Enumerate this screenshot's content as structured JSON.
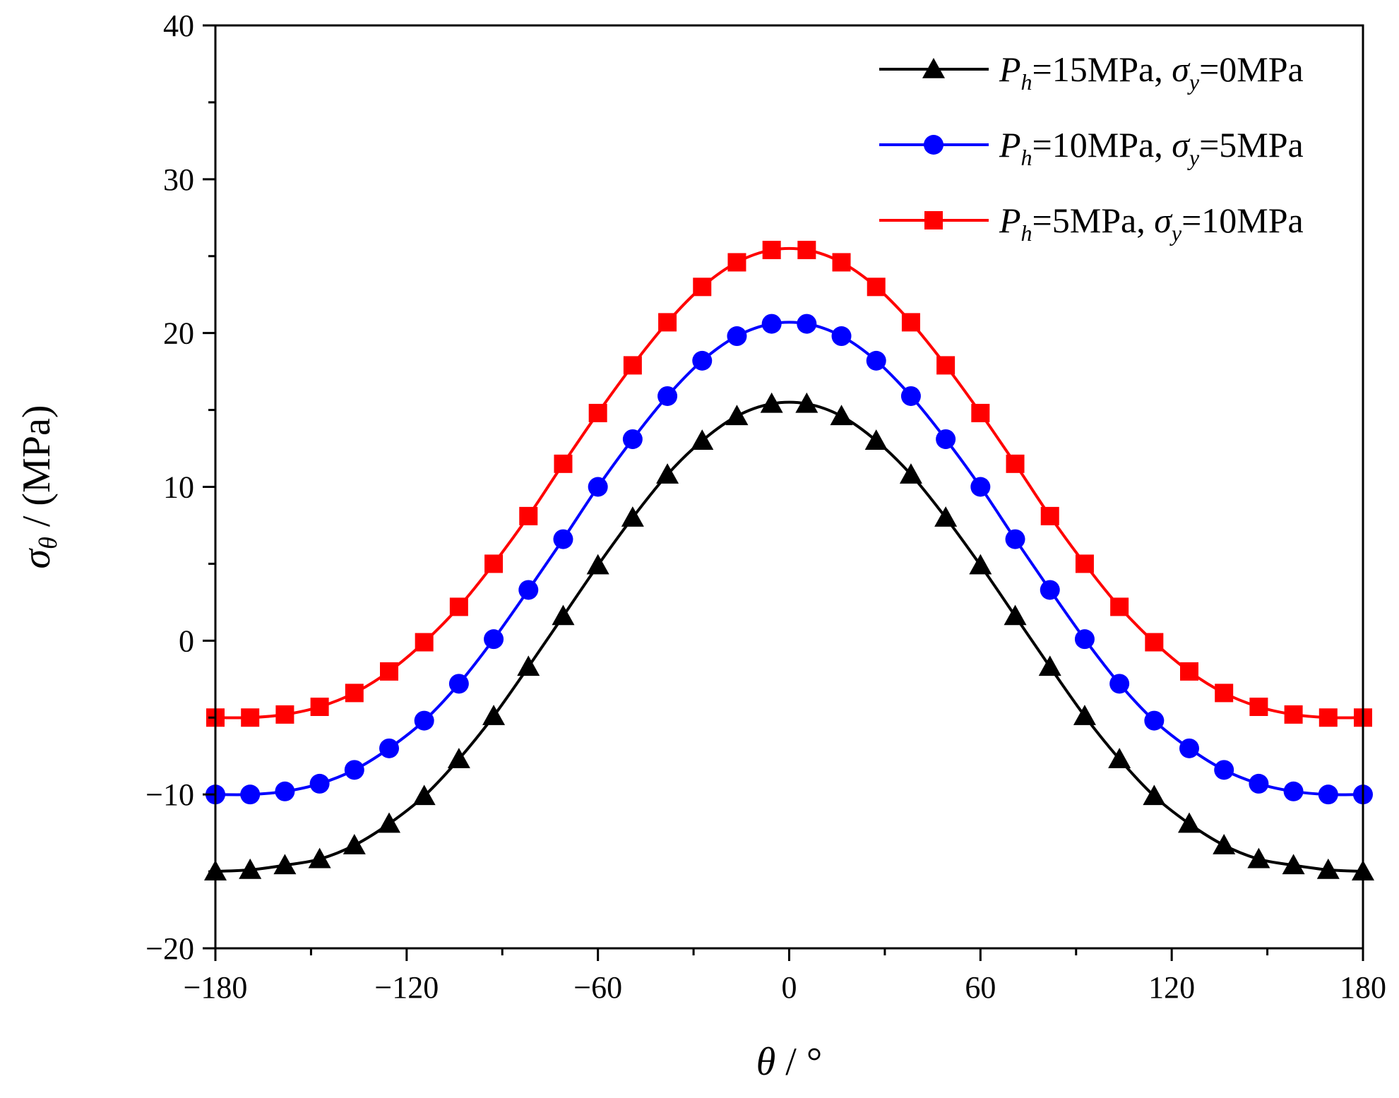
{
  "chart_data": {
    "type": "line",
    "title": "",
    "xlabel": {
      "symbol": "θ",
      "unit": "°",
      "separator": " / "
    },
    "ylabel": {
      "symbol": "σ",
      "subscript": "θ",
      "unit": "(MPa)",
      "separator": " / "
    },
    "xlim": [
      -180,
      180
    ],
    "ylim": [
      -20,
      40
    ],
    "xticks": [
      -180,
      -120,
      -60,
      0,
      60,
      120,
      180
    ],
    "xtick_labels": [
      "−180",
      "−120",
      "−60",
      "0",
      "60",
      "120",
      "180"
    ],
    "yticks": [
      -20,
      -10,
      0,
      10,
      20,
      30,
      40
    ],
    "ytick_labels": [
      "−20",
      "−10",
      "0",
      "10",
      "20",
      "30",
      "40"
    ],
    "grid": false,
    "legend_position": "top-right",
    "x": [
      -180,
      -169.1,
      -158.2,
      -147.3,
      -136.4,
      -125.5,
      -114.5,
      -103.6,
      -92.7,
      -81.8,
      -70.9,
      -60,
      -49.1,
      -38.2,
      -27.3,
      -16.4,
      -5.5,
      5.5,
      16.4,
      27.3,
      38.2,
      49.1,
      60,
      70.9,
      81.8,
      92.7,
      103.6,
      114.5,
      125.5,
      136.4,
      147.3,
      158.2,
      169.1,
      180
    ],
    "series": [
      {
        "name": "Ph=15MPa, σy=0MPa",
        "legend": {
          "P": "P",
          "Psub": "h",
          "mid": "=15MPa, ",
          "sig": "σ",
          "sigsub": "y",
          "end": "=0MPa"
        },
        "color": "#000000",
        "marker": "triangle",
        "values": [
          -15.0,
          -14.9,
          -14.6,
          -14.2,
          -13.3,
          -11.9,
          -10.1,
          -7.7,
          -4.9,
          -1.7,
          1.6,
          4.9,
          8.0,
          10.8,
          13.0,
          14.6,
          15.4,
          15.4,
          14.6,
          13.0,
          10.8,
          8.0,
          4.9,
          1.6,
          -1.7,
          -4.9,
          -7.7,
          -10.1,
          -11.9,
          -13.3,
          -14.2,
          -14.6,
          -14.9,
          -15.0
        ]
      },
      {
        "name": "Ph=10MPa, σy=5MPa",
        "legend": {
          "P": "P",
          "Psub": "h",
          "mid": "=10MPa, ",
          "sig": "σ",
          "sigsub": "y",
          "end": "=5MPa"
        },
        "color": "#0000ff",
        "marker": "circle",
        "values": [
          -10.0,
          -10.0,
          -9.8,
          -9.3,
          -8.4,
          -7.0,
          -5.2,
          -2.8,
          0.1,
          3.3,
          6.6,
          10.0,
          13.1,
          15.9,
          18.2,
          19.8,
          20.6,
          20.6,
          19.8,
          18.2,
          15.9,
          13.1,
          10.0,
          6.6,
          3.3,
          0.1,
          -2.8,
          -5.2,
          -7.0,
          -8.4,
          -9.3,
          -9.8,
          -10.0,
          -10.0
        ]
      },
      {
        "name": "Ph=5MPa, σy=10MPa",
        "legend": {
          "P": "P",
          "Psub": "h",
          "mid": "=5MPa, ",
          "sig": "σ",
          "sigsub": "y",
          "end": "=10MPa"
        },
        "color": "#ff0000",
        "marker": "square",
        "values": [
          -5.0,
          -5.0,
          -4.8,
          -4.3,
          -3.4,
          -2.0,
          -0.1,
          2.2,
          5.0,
          8.1,
          11.5,
          14.8,
          17.9,
          20.7,
          23.0,
          24.6,
          25.4,
          25.4,
          24.6,
          23.0,
          20.7,
          17.9,
          14.8,
          11.5,
          8.1,
          5.0,
          2.2,
          -0.1,
          -2.0,
          -3.4,
          -4.3,
          -4.8,
          -5.0,
          -5.0
        ]
      }
    ]
  }
}
